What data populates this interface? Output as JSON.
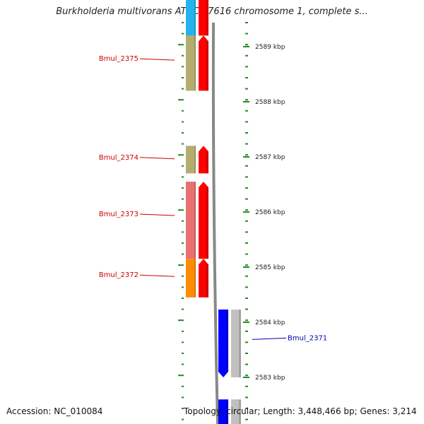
{
  "title": "Burkholderia multivorans ATCC 17616 chromosome 1, complete s...",
  "footer": {
    "accession": "Accession: NC_010084",
    "summary": "Topology: circular; Length: 3,448,466 bp; Genes: 3,214"
  },
  "colors": {
    "forward_strand": "#ff0000",
    "reverse_strand": "#0000ff",
    "backbone": "#888888",
    "tick": "#228b22",
    "label_forward": "#cc0000",
    "label_reverse": "#0000aa"
  },
  "ruler": [
    {
      "label": "2589 kbp",
      "kbp": 2589
    },
    {
      "label": "2588 kbp",
      "kbp": 2588
    },
    {
      "label": "2587 kbp",
      "kbp": 2587
    },
    {
      "label": "2586 kbp",
      "kbp": 2586
    },
    {
      "label": "2585 kbp",
      "kbp": 2585
    },
    {
      "label": "2584 kbp",
      "kbp": 2584
    },
    {
      "label": "2583 kbp",
      "kbp": 2583
    }
  ],
  "genes": [
    {
      "strand": "+",
      "start_kbp": 2590.3,
      "end_kbp": 2589.2,
      "cog_color": "#22b4ee",
      "label": ""
    },
    {
      "strand": "+",
      "start_kbp": 2589.2,
      "end_kbp": 2588.2,
      "cog_color": "#b5ad6e",
      "label": "Bmul_2375"
    },
    {
      "strand": "+",
      "start_kbp": 2587.2,
      "end_kbp": 2586.7,
      "cog_color": "#b5ad6e",
      "label": "Bmul_2374"
    },
    {
      "strand": "+",
      "start_kbp": 2586.55,
      "end_kbp": 2585.15,
      "cog_color": "#e87070",
      "label": "Bmul_2373"
    },
    {
      "strand": "+",
      "start_kbp": 2585.15,
      "end_kbp": 2584.45,
      "cog_color": "#ff8c00",
      "label": "Bmul_2372"
    },
    {
      "strand": "-",
      "start_kbp": 2584.23,
      "end_kbp": 2583.0,
      "cog_color": "#c0c0c0",
      "label": "Bmul_2371"
    },
    {
      "strand": "-",
      "start_kbp": 2582.6,
      "end_kbp": 2582.0,
      "cog_color": "#c0c0c0",
      "label": ""
    }
  ]
}
